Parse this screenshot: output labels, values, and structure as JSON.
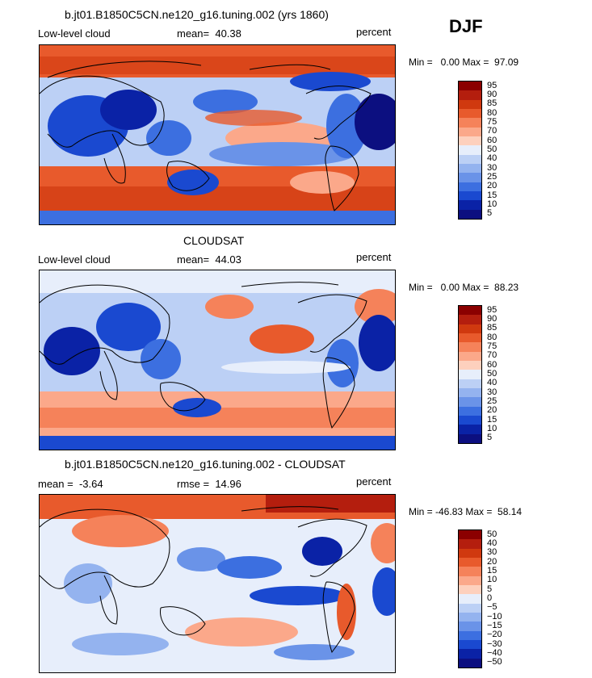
{
  "season": "DJF",
  "colors_12": [
    "#8b0000",
    "#b41e0e",
    "#d0390f",
    "#e85a2c",
    "#f5825a",
    "#fba88a",
    "#fdd0bd",
    "#e7eefb",
    "#bcd0f5",
    "#94b3ef",
    "#6a93e8",
    "#3c6fe0",
    "#1a49d0",
    "#0a22a6",
    "#0c0f80"
  ],
  "panels": [
    {
      "title": "b.jt01.B1850C5CN.ne120_g16.tuning.002 (yrs 1860)",
      "left_label": "Low-level cloud",
      "mid_label": "mean=  40.38",
      "right_label": "percent",
      "stats": "Min =   0.00 Max =  97.09",
      "colorbar_labels": [
        "95",
        "90",
        "85",
        "80",
        "75",
        "70",
        "60",
        "50",
        "40",
        "30",
        "25",
        "20",
        "15",
        "10",
        "5"
      ],
      "chart_data": {
        "type": "heatmap",
        "variable": "Low-level cloud",
        "units": "percent",
        "mean": 40.38,
        "min": 0.0,
        "max": 97.09,
        "levels": [
          5,
          10,
          15,
          20,
          25,
          30,
          40,
          50,
          60,
          70,
          75,
          80,
          85,
          90,
          95
        ]
      }
    },
    {
      "title": "CLOUDSAT",
      "left_label": "Low-level cloud",
      "mid_label": "mean=  44.03",
      "right_label": "percent",
      "stats": "Min =   0.00 Max =  88.23",
      "colorbar_labels": [
        "95",
        "90",
        "85",
        "80",
        "75",
        "70",
        "60",
        "50",
        "40",
        "30",
        "25",
        "20",
        "15",
        "10",
        "5"
      ],
      "chart_data": {
        "type": "heatmap",
        "variable": "Low-level cloud",
        "units": "percent",
        "mean": 44.03,
        "min": 0.0,
        "max": 88.23,
        "levels": [
          5,
          10,
          15,
          20,
          25,
          30,
          40,
          50,
          60,
          70,
          75,
          80,
          85,
          90,
          95
        ]
      }
    },
    {
      "title": "b.jt01.B1850C5CN.ne120_g16.tuning.002 - CLOUDSAT",
      "left_label": "mean =  -3.64",
      "mid_label": "rmse =  14.96",
      "right_label": "percent",
      "stats": "Min = -46.83 Max =  58.14",
      "colorbar_labels": [
        "50",
        "40",
        "30",
        "20",
        "15",
        "10",
        "5",
        "0",
        "−5",
        "−10",
        "−15",
        "−20",
        "−30",
        "−40",
        "−50"
      ],
      "chart_data": {
        "type": "heatmap",
        "variable": "difference",
        "units": "percent",
        "mean": -3.64,
        "rmse": 14.96,
        "min": -46.83,
        "max": 58.14,
        "levels": [
          -50,
          -40,
          -30,
          -20,
          -15,
          -10,
          -5,
          0,
          5,
          10,
          15,
          20,
          30,
          40,
          50
        ]
      }
    }
  ]
}
